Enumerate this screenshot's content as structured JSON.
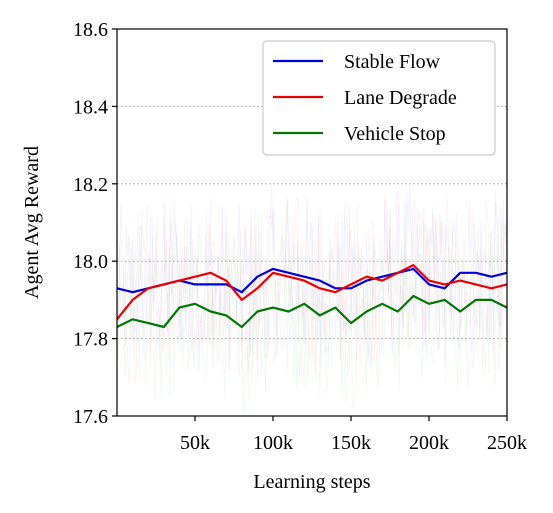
{
  "chart_data": {
    "type": "line",
    "xlabel": "Learning steps",
    "ylabel": "Agent Avg Reward",
    "xlim": [
      0,
      250000
    ],
    "ylim": [
      17.6,
      18.6
    ],
    "x_ticks": [
      50000,
      100000,
      150000,
      200000,
      250000
    ],
    "x_tick_labels": [
      "50k",
      "100k",
      "150k",
      "200k",
      "250k"
    ],
    "y_ticks": [
      17.6,
      17.8,
      18.0,
      18.2,
      18.4,
      18.6
    ],
    "y_tick_labels": [
      "17.6",
      "17.8",
      "18.0",
      "18.2",
      "18.4",
      "18.6"
    ],
    "y_grid": true,
    "grid_style": "dotted",
    "legend_position": "top-right",
    "x": [
      0,
      10000,
      20000,
      30000,
      40000,
      50000,
      60000,
      70000,
      80000,
      90000,
      100000,
      110000,
      120000,
      130000,
      140000,
      150000,
      160000,
      170000,
      180000,
      190000,
      200000,
      210000,
      220000,
      230000,
      240000,
      250000
    ],
    "series": [
      {
        "name": "Stable Flow",
        "color": "#0000dd",
        "values": [
          17.93,
          17.92,
          17.93,
          17.94,
          17.95,
          17.94,
          17.94,
          17.94,
          17.92,
          17.96,
          17.98,
          17.97,
          17.96,
          17.95,
          17.93,
          17.93,
          17.95,
          17.96,
          17.97,
          17.98,
          17.94,
          17.93,
          17.97,
          17.97,
          17.96,
          17.97
        ]
      },
      {
        "name": "Lane Degrade",
        "color": "#ee0000",
        "values": [
          17.85,
          17.9,
          17.93,
          17.94,
          17.95,
          17.96,
          17.97,
          17.95,
          17.9,
          17.93,
          17.97,
          17.96,
          17.95,
          17.93,
          17.92,
          17.94,
          17.96,
          17.95,
          17.97,
          17.99,
          17.95,
          17.94,
          17.95,
          17.94,
          17.93,
          17.94
        ]
      },
      {
        "name": "Vehicle Stop",
        "color": "#007700",
        "values": [
          17.83,
          17.85,
          17.84,
          17.83,
          17.88,
          17.89,
          17.87,
          17.86,
          17.83,
          17.87,
          17.88,
          17.87,
          17.89,
          17.86,
          17.88,
          17.84,
          17.87,
          17.89,
          17.87,
          17.91,
          17.89,
          17.9,
          17.87,
          17.9,
          17.9,
          17.88
        ]
      }
    ]
  }
}
